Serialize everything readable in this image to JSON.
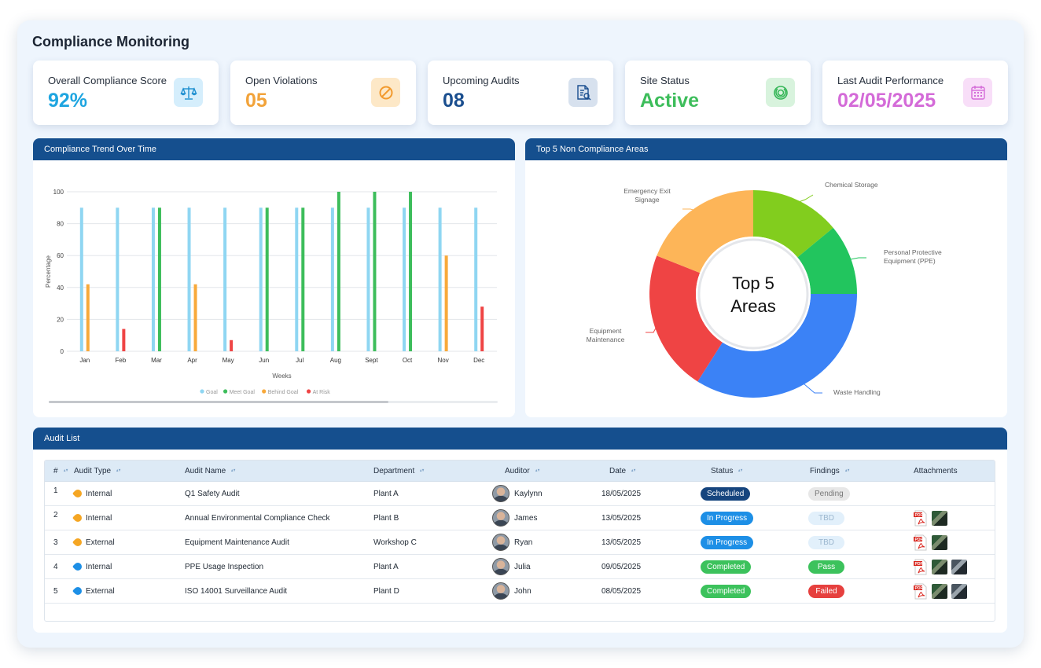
{
  "page_title": "Compliance Monitoring",
  "kpis": [
    {
      "label": "Overall Compliance Score",
      "value": "92%",
      "color": "#1ea5e0",
      "icon": "scale-icon",
      "icon_bg": "#d5eefc"
    },
    {
      "label": "Open Violations",
      "value": "05",
      "color": "#f2a33a",
      "icon": "prohibited-icon",
      "icon_bg": "#fde8c7"
    },
    {
      "label": "Upcoming Audits",
      "value": "08",
      "color": "#1b4f8f",
      "icon": "audit-document-icon",
      "icon_bg": "#d7e1ee"
    },
    {
      "label": "Site Status",
      "value": "Active",
      "color": "#3dbd5b",
      "icon": "status-ring-icon",
      "icon_bg": "#d8f3dd"
    },
    {
      "label": "Last Audit Performance",
      "value": "02/05/2025",
      "color": "#d46bd8",
      "icon": "calendar-icon",
      "icon_bg": "#f8def8"
    }
  ],
  "trend_panel": {
    "title": "Compliance Trend Over Time",
    "chart_data": {
      "type": "bar",
      "xlabel": "Weeks",
      "ylabel": "Percentage",
      "ylim": [
        0,
        100
      ],
      "yticks": [
        0,
        20,
        40,
        60,
        80,
        100
      ],
      "grid": true,
      "legend_position": "bottom",
      "categories": [
        "Jan",
        "Feb",
        "Mar",
        "Apr",
        "May",
        "Jun",
        "Jul",
        "Aug",
        "Sept",
        "Oct",
        "Nov",
        "Dec"
      ],
      "series": [
        {
          "name": "Goal",
          "color": "#8fd6f2",
          "values": [
            90,
            90,
            90,
            90,
            90,
            90,
            90,
            90,
            90,
            90,
            90,
            90
          ]
        },
        {
          "name": "Meet Goal",
          "color": "#3dbd5b",
          "values": [
            null,
            null,
            90,
            null,
            null,
            90,
            90,
            100,
            100,
            100,
            null,
            null
          ]
        },
        {
          "name": "Behind Goal",
          "color": "#f8a93a",
          "values": [
            42,
            null,
            null,
            42,
            null,
            null,
            null,
            null,
            null,
            null,
            60,
            null
          ]
        },
        {
          "name": "At Risk",
          "color": "#ef4444",
          "values": [
            null,
            14,
            null,
            null,
            7,
            null,
            null,
            null,
            null,
            null,
            null,
            28
          ]
        }
      ]
    }
  },
  "donut_panel": {
    "title": "Top 5 Non Compliance Areas",
    "center_line1": "Top 5",
    "center_line2": "Areas",
    "chart_data": {
      "type": "pie",
      "variant": "donut",
      "slices": [
        {
          "label": "Chemical Storage",
          "value": 14,
          "color": "#82cd1e"
        },
        {
          "label": "Personal Protective Equipment (PPE)",
          "value": 11,
          "color": "#22c55e"
        },
        {
          "label": "Waste Handling",
          "value": 34,
          "color": "#3b82f6"
        },
        {
          "label": "Equipment Maintenance",
          "value": 22,
          "color": "#ef4444"
        },
        {
          "label": "Emergency Exit Signage",
          "value": 19,
          "color": "#fdb558"
        }
      ],
      "label_lines": {
        "Chemical Storage": [
          "Chemical Storage"
        ],
        "Personal Protective Equipment (PPE)": [
          "Personal Protective",
          "Equipment (PPE)"
        ],
        "Waste Handling": [
          "Waste Handling"
        ],
        "Equipment Maintenance": [
          "Equipment",
          "Maintenance"
        ],
        "Emergency Exit Signage": [
          "Emergency Exit",
          "Signage"
        ]
      }
    }
  },
  "audit_list": {
    "title": "Audit List",
    "columns": [
      "#",
      "Audit Type",
      "Audit Name",
      "Department",
      "Auditor",
      "Date",
      "Status",
      "Findings",
      "Attachments"
    ],
    "rows": [
      {
        "num": "1",
        "type": "Internal",
        "type_color": "#f5a623",
        "name": "Q1 Safety Audit",
        "dept": "Plant A",
        "auditor": "Kaylynn",
        "date": "18/05/2025",
        "status": "Scheduled",
        "status_color": "#16457e",
        "findings": "Pending",
        "findings_bg": "#e7e7e7",
        "findings_fg": "#777777",
        "pdf": false,
        "images": 0
      },
      {
        "num": "2",
        "type": "Internal",
        "type_color": "#f5a623",
        "name": "Annual Environmental Compliance Check",
        "dept": "Plant B",
        "auditor": "James",
        "date": "13/05/2025",
        "status": "In Progress",
        "status_color": "#1d8fe6",
        "findings": "TBD",
        "findings_bg": "#e2f0fb",
        "findings_fg": "#9cb7cf",
        "pdf": true,
        "images": 1
      },
      {
        "num": "3",
        "type": "External",
        "type_color": "#f5a623",
        "name": "Equipment Maintenance Audit",
        "dept": "Workshop C",
        "auditor": "Ryan",
        "date": "13/05/2025",
        "status": "In Progress",
        "status_color": "#1d8fe6",
        "findings": "TBD",
        "findings_bg": "#e2f0fb",
        "findings_fg": "#9cb7cf",
        "pdf": true,
        "images": 1
      },
      {
        "num": "4",
        "type": "Internal",
        "type_color": "#1d8fe6",
        "name": "PPE Usage Inspection",
        "dept": "Plant A",
        "auditor": "Julia",
        "date": "09/05/2025",
        "status": "Completed",
        "status_color": "#3cc25c",
        "findings": "Pass",
        "findings_bg": "#3cc25c",
        "findings_fg": "#ffffff",
        "pdf": true,
        "images": 2
      },
      {
        "num": "5",
        "type": "External",
        "type_color": "#1d8fe6",
        "name": "ISO 14001 Surveillance Audit",
        "dept": "Plant D",
        "auditor": "John",
        "date": "08/05/2025",
        "status": "Completed",
        "status_color": "#3cc25c",
        "findings": "Failed",
        "findings_bg": "#e6403e",
        "findings_fg": "#ffffff",
        "pdf": true,
        "images": 2
      }
    ]
  }
}
